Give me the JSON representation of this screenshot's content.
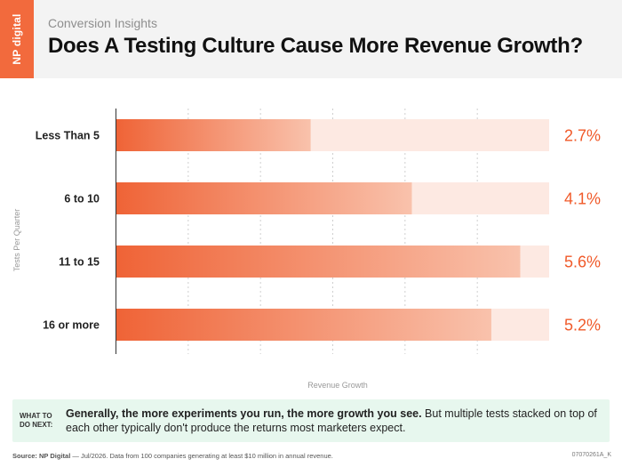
{
  "header": {
    "logo": "NP digital",
    "kicker": "Conversion Insights",
    "title": "Does A Testing Culture Cause More Revenue Growth?"
  },
  "chart_data": {
    "type": "bar",
    "orientation": "horizontal",
    "title": "Does A Testing Culture Cause More Revenue Growth?",
    "categories": [
      "Less Than 5",
      "6 to 10",
      "11 to 15",
      "16 or more"
    ],
    "values": [
      2.7,
      4.1,
      5.6,
      5.2
    ],
    "value_labels": [
      "2.7%",
      "4.1%",
      "5.6%",
      "5.2%"
    ],
    "xlabel": "Revenue Growth",
    "ylabel": "Tests Per Quarter",
    "xlim": [
      0,
      6
    ],
    "grid": true,
    "colors": {
      "bar_start": "#ef6336",
      "bar_end": "#f9c2ac",
      "track": "#fde9e2",
      "value_text": "#f05a2a",
      "label_text": "#222222"
    }
  },
  "callout": {
    "label_line1": "WHAT TO",
    "label_line2": "DO NEXT:",
    "bold_text": "Generally, the more experiments you run, the more growth you see.",
    "text": " But multiple tests stacked on top of each other typically don't produce the returns most marketers expect."
  },
  "footer": {
    "source_label": "Source: NP Digital",
    "source_text": " — Jul/2026. Data from 100 companies generating at least $10 million in annual revenue.",
    "code": "07070261A_K"
  }
}
